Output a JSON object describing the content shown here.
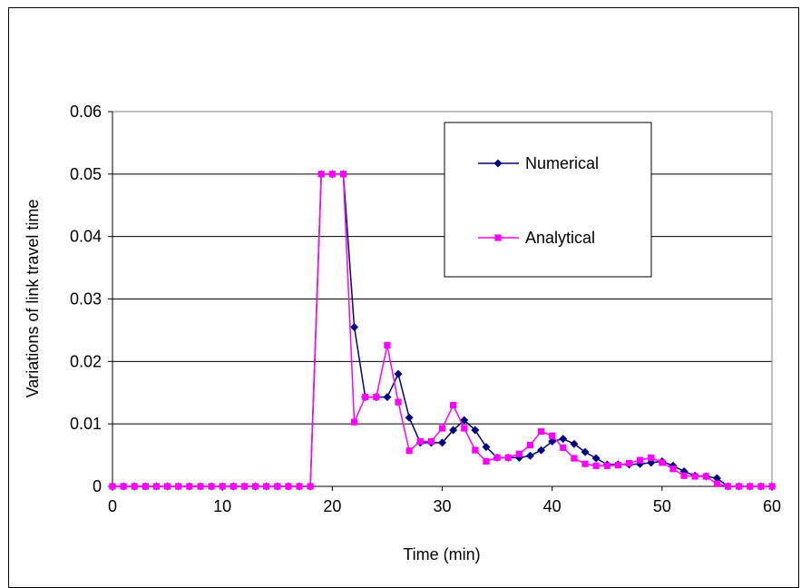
{
  "chart_data": {
    "type": "line",
    "title": "",
    "xlabel": "Time (min)",
    "ylabel": "Variations of link travel time",
    "xlim": [
      0,
      60
    ],
    "ylim": [
      0,
      0.06
    ],
    "x_ticks": [
      "0",
      "10",
      "20",
      "30",
      "40",
      "50",
      "60"
    ],
    "y_ticks": [
      "0",
      "0.01",
      "0.02",
      "0.03",
      "0.04",
      "0.05",
      "0.06"
    ],
    "grid": "horizontal",
    "legend_position": "top-right",
    "x": [
      0,
      1,
      2,
      3,
      4,
      5,
      6,
      7,
      8,
      9,
      10,
      11,
      12,
      13,
      14,
      15,
      16,
      17,
      18,
      19,
      20,
      21,
      22,
      23,
      24,
      25,
      26,
      27,
      28,
      29,
      30,
      31,
      32,
      33,
      34,
      35,
      36,
      37,
      38,
      39,
      40,
      41,
      42,
      43,
      44,
      45,
      46,
      47,
      48,
      49,
      50,
      51,
      52,
      53,
      54,
      55,
      56,
      57,
      58,
      59,
      60
    ],
    "series": [
      {
        "name": "Numerical",
        "color": "#000080",
        "marker": "diamond",
        "values": [
          0,
          0,
          0,
          0,
          0,
          0,
          0,
          0,
          0,
          0,
          0,
          0,
          0,
          0,
          0,
          0,
          0,
          0,
          0,
          0.05,
          0.05,
          0.05,
          0.0255,
          0.0143,
          0.0143,
          0.0143,
          0.018,
          0.011,
          0.007,
          0.007,
          0.007,
          0.009,
          0.0106,
          0.009,
          0.0063,
          0.0046,
          0.0046,
          0.0046,
          0.0049,
          0.0058,
          0.0072,
          0.0076,
          0.0068,
          0.0055,
          0.0045,
          0.0035,
          0.0035,
          0.0035,
          0.0036,
          0.0038,
          0.004,
          0.0033,
          0.0024,
          0.0017,
          0.0016,
          0.0013,
          0,
          0,
          0,
          0,
          0
        ]
      },
      {
        "name": "Analytical",
        "color": "#ff00ff",
        "marker": "square",
        "values": [
          0,
          0,
          0,
          0,
          0,
          0,
          0,
          0,
          0,
          0,
          0,
          0,
          0,
          0,
          0,
          0,
          0,
          0,
          0,
          0.05,
          0.05,
          0.05,
          0.0103,
          0.0143,
          0.0143,
          0.0226,
          0.0135,
          0.0057,
          0.0072,
          0.0072,
          0.0093,
          0.013,
          0.0093,
          0.0058,
          0.004,
          0.0046,
          0.0046,
          0.0052,
          0.0066,
          0.0088,
          0.0081,
          0.0062,
          0.0045,
          0.0036,
          0.0033,
          0.0033,
          0.0034,
          0.0037,
          0.0042,
          0.0046,
          0.0038,
          0.0028,
          0.0017,
          0.0016,
          0.0016,
          0.0004,
          0,
          0,
          0,
          0,
          0
        ]
      }
    ]
  }
}
